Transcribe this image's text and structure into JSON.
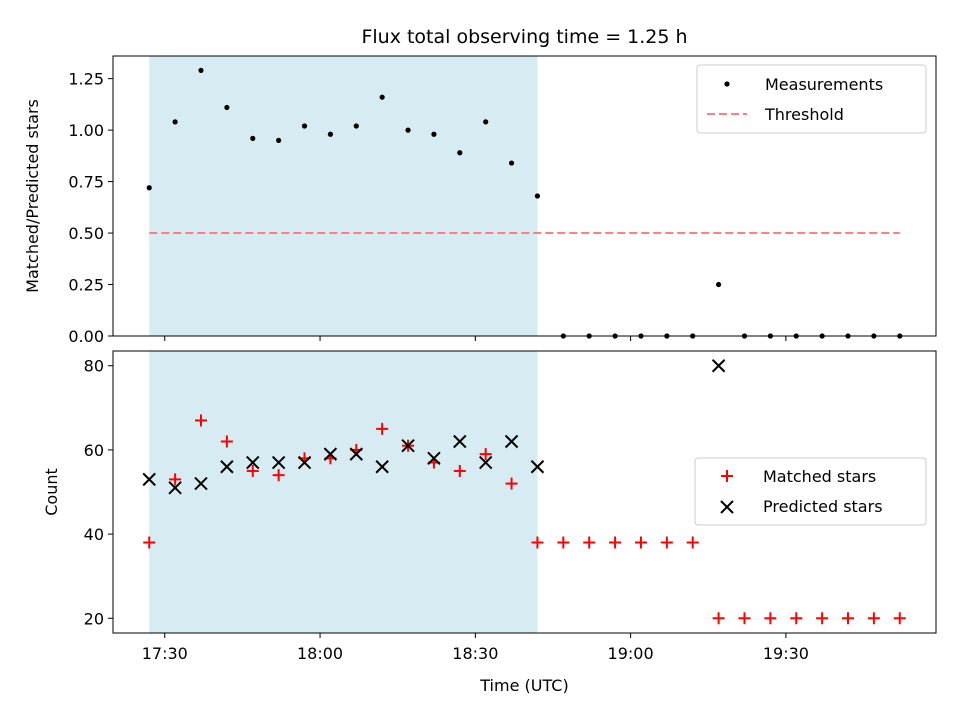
{
  "chart_data": [
    {
      "type": "scatter",
      "title": "Flux total observing time = 1.25 h",
      "xlabel": "",
      "ylabel": "Matched/Predicted stars",
      "ylim": [
        0,
        1.36
      ],
      "yticks": [
        0.0,
        0.25,
        0.5,
        0.75,
        1.0,
        1.25
      ],
      "ytick_labels": [
        "0.00",
        "0.25",
        "0.50",
        "0.75",
        "1.00",
        "1.25"
      ],
      "shaded_span_minutes": [
        0,
        75
      ],
      "series": [
        {
          "name": "Measurements",
          "marker": "dot",
          "color": "#000000",
          "x_minutes": [
            0,
            5,
            10,
            15,
            20,
            25,
            30,
            35,
            40,
            45,
            50,
            55,
            60,
            65,
            70,
            75,
            80,
            85,
            90,
            95,
            100,
            105,
            110,
            115,
            120,
            125,
            130,
            135,
            140,
            145
          ],
          "values": [
            0.72,
            1.04,
            1.29,
            1.11,
            0.96,
            0.95,
            1.02,
            0.98,
            1.02,
            1.16,
            1.0,
            0.98,
            0.89,
            1.04,
            0.84,
            0.68,
            0.0,
            0.0,
            0.0,
            0.0,
            0.0,
            0.0,
            0.25,
            0.0,
            0.0,
            0.0,
            0.0,
            0.0,
            0.0,
            0.0
          ]
        },
        {
          "name": "Threshold",
          "type": "line",
          "style": "dashed",
          "color": "#ff7f7f",
          "x_minutes": [
            0,
            145
          ],
          "values": [
            0.5,
            0.5
          ]
        }
      ],
      "legend": "top-right"
    },
    {
      "type": "scatter",
      "title": "",
      "xlabel": "Time (UTC)",
      "ylabel": "Count",
      "ylim": [
        16.5,
        83.5
      ],
      "yticks": [
        20,
        40,
        60,
        80
      ],
      "ytick_labels": [
        "20",
        "40",
        "60",
        "80"
      ],
      "x_tick_minutes": [
        3,
        33,
        63,
        93,
        123
      ],
      "x_tick_labels": [
        "17:30",
        "18:00",
        "18:30",
        "19:00",
        "19:30"
      ],
      "xlim_minutes": [
        -7,
        152
      ],
      "shaded_span_minutes": [
        0,
        75
      ],
      "series": [
        {
          "name": "Matched stars",
          "marker": "plus",
          "color": "#ff0000",
          "x_minutes": [
            0,
            5,
            10,
            15,
            20,
            25,
            30,
            35,
            40,
            45,
            50,
            55,
            60,
            65,
            70,
            75,
            80,
            85,
            90,
            95,
            100,
            105,
            110,
            115,
            120,
            125,
            130,
            135,
            140,
            145
          ],
          "values": [
            38,
            53,
            67,
            62,
            55,
            54,
            58,
            58,
            60,
            65,
            61,
            57,
            55,
            59,
            52,
            38,
            38,
            38,
            38,
            38,
            38,
            38,
            20,
            20,
            20,
            20,
            20,
            20,
            20,
            20
          ]
        },
        {
          "name": "Predicted stars",
          "marker": "x",
          "color": "#000000",
          "x_minutes": [
            0,
            5,
            10,
            15,
            20,
            25,
            30,
            35,
            40,
            45,
            50,
            55,
            60,
            65,
            70,
            75,
            110
          ],
          "values": [
            53,
            51,
            52,
            56,
            57,
            57,
            57,
            59,
            59,
            56,
            61,
            58,
            62,
            57,
            62,
            56,
            80
          ]
        }
      ],
      "legend": "center-right"
    }
  ],
  "colors": {
    "shade": "#add8e6",
    "threshold": "#ff7f7f",
    "matched": "#ff0000",
    "predicted": "#000000",
    "measurements": "#000000"
  }
}
